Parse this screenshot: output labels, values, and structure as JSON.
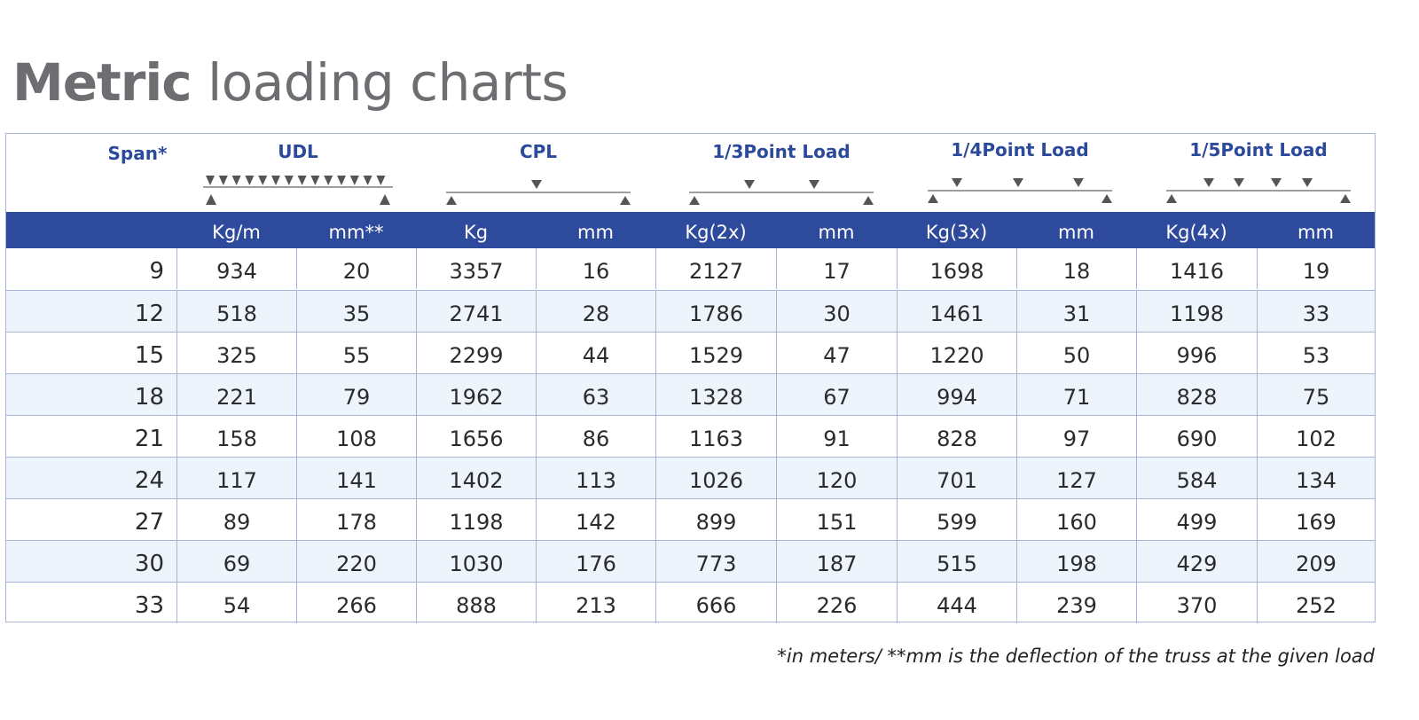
{
  "title": {
    "bold": "Metric",
    "light": "loading charts"
  },
  "header": {
    "span_label": "Span*",
    "categories": [
      "UDL",
      "CPL",
      "1/3Point Load",
      "1/4Point Load",
      "1/5Point Load"
    ],
    "units": [
      "Kg/m",
      "mm**",
      "Kg",
      "mm",
      "Kg(2x)",
      "mm",
      "Kg(3x)",
      "mm",
      "Kg(4x)",
      "mm"
    ]
  },
  "rows": [
    {
      "span": "9",
      "values": [
        "934",
        "20",
        "3357",
        "16",
        "2127",
        "17",
        "1698",
        "18",
        "1416",
        "19"
      ]
    },
    {
      "span": "12",
      "values": [
        "518",
        "35",
        "2741",
        "28",
        "1786",
        "30",
        "1461",
        "31",
        "1198",
        "33"
      ]
    },
    {
      "span": "15",
      "values": [
        "325",
        "55",
        "2299",
        "44",
        "1529",
        "47",
        "1220",
        "50",
        "996",
        "53"
      ]
    },
    {
      "span": "18",
      "values": [
        "221",
        "79",
        "1962",
        "63",
        "1328",
        "67",
        "994",
        "71",
        "828",
        "75"
      ]
    },
    {
      "span": "21",
      "values": [
        "158",
        "108",
        "1656",
        "86",
        "1163",
        "91",
        "828",
        "97",
        "690",
        "102"
      ]
    },
    {
      "span": "24",
      "values": [
        "117",
        "141",
        "1402",
        "113",
        "1026",
        "120",
        "701",
        "127",
        "584",
        "134"
      ]
    },
    {
      "span": "27",
      "values": [
        "89",
        "178",
        "1198",
        "142",
        "899",
        "151",
        "599",
        "160",
        "499",
        "169"
      ]
    },
    {
      "span": "30",
      "values": [
        "69",
        "220",
        "1030",
        "176",
        "773",
        "187",
        "515",
        "198",
        "429",
        "209"
      ]
    },
    {
      "span": "33",
      "values": [
        "54",
        "266",
        "888",
        "213",
        "666",
        "226",
        "444",
        "239",
        "370",
        "252"
      ]
    }
  ],
  "footnote": "*in meters/ **mm is the deflection of the truss at the given load",
  "colors": {
    "title_gray": "#6d6e71",
    "header_blue": "#2e4a9c",
    "category_blue": "#2c4a9b",
    "row_alt": "#edf4fb",
    "grid": "#a9b3d6"
  },
  "icons": [
    "udl-diagram-icon",
    "cpl-diagram-icon",
    "third-point-diagram-icon",
    "quarter-point-diagram-icon",
    "fifth-point-diagram-icon"
  ]
}
